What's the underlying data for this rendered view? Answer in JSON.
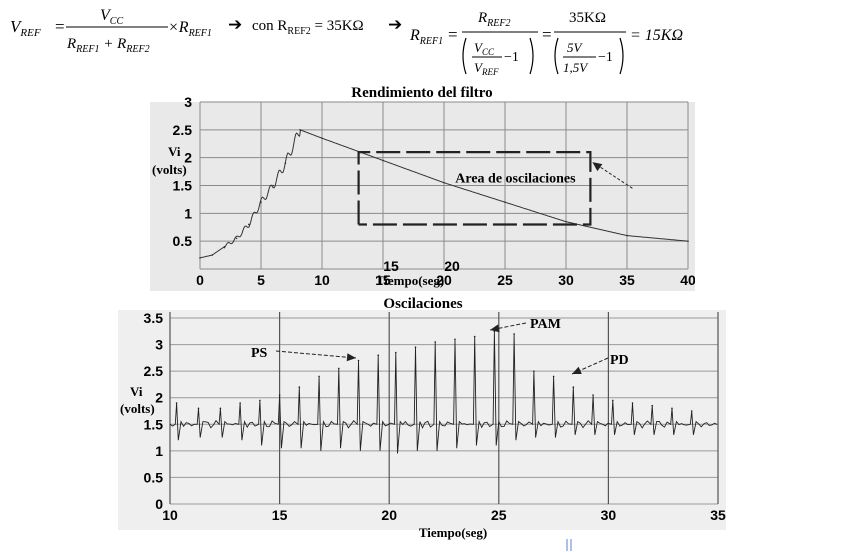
{
  "equation": {
    "lhs": "V_REF",
    "part1_numerator": "V_CC",
    "part1_denominator": "R_REF1 + R_REF2",
    "part1_factor": "× R_REF1",
    "arrow": "➔",
    "condition": "con R_REF2 = 35KΩ",
    "rref1": "R_REF1",
    "part2_numerator": "R_REF2",
    "part2_inner_numerator": "V_CC",
    "part2_inner_denominator": "V_REF",
    "minus_one": "−1",
    "part3_numerator": "35KΩ",
    "part3_inner_numerator": "5V",
    "part3_inner_denominator": "1,5V",
    "result": "= 15KΩ"
  },
  "chart_data": [
    {
      "type": "line",
      "title": "Rendimiento del filtro",
      "xlabel": "Tiempo(seg)",
      "ylabel": "Vi (volts)",
      "xlim": [
        0,
        40
      ],
      "ylim": [
        0,
        3
      ],
      "xticks": [
        "0",
        "5",
        "10",
        "15",
        "20",
        "25",
        "30",
        "35",
        "40"
      ],
      "yticks": [
        "0.5",
        "1",
        "1.5",
        "2",
        "2.5",
        "3"
      ],
      "grid": true,
      "series": [
        {
          "x": [
            0,
            1,
            2,
            3,
            4,
            5,
            6,
            7,
            8.2,
            10,
            15,
            20,
            25,
            30,
            35,
            40
          ],
          "y": [
            0.2,
            0.25,
            0.4,
            0.55,
            0.8,
            1.2,
            1.5,
            1.9,
            2.5,
            2.35,
            1.95,
            1.55,
            1.2,
            0.85,
            0.6,
            0.5
          ]
        }
      ],
      "annotations": [
        {
          "text": "Area de oscilaciones",
          "type": "dashed-box",
          "x_range": [
            13,
            32
          ],
          "y_range": [
            0.8,
            2.1
          ]
        },
        {
          "text": "15",
          "x": 15
        },
        {
          "text": "20",
          "x": 20
        }
      ]
    },
    {
      "type": "line",
      "title": "Oscilaciones",
      "xlabel": "Tiempo(seg)",
      "ylabel": "Vi (volts)",
      "xlim": [
        10,
        35
      ],
      "ylim": [
        0,
        3.5
      ],
      "xticks": [
        "10",
        "15",
        "20",
        "25",
        "30",
        "35"
      ],
      "yticks": [
        "0",
        "0.5",
        "1",
        "1.5",
        "2",
        "2.5",
        "3",
        "3.5"
      ],
      "grid": true,
      "baseline": 1.5,
      "series": [
        {
          "peak_times": [
            10.3,
            11.3,
            12.3,
            13.2,
            14.1,
            15.0,
            15.9,
            16.8,
            17.7,
            18.6,
            19.5,
            20.3,
            21.2,
            22.1,
            23.0,
            23.9,
            24.8,
            25.7,
            26.6,
            27.5,
            28.4,
            29.3,
            30.2,
            31.1,
            32.0,
            32.9,
            33.8
          ],
          "peak_values": [
            1.9,
            1.8,
            1.8,
            1.9,
            1.95,
            2.05,
            2.2,
            2.4,
            2.55,
            2.7,
            2.8,
            2.85,
            2.95,
            3.05,
            3.1,
            3.15,
            3.25,
            3.2,
            2.5,
            2.4,
            2.2,
            2.05,
            1.95,
            1.9,
            1.85,
            1.8,
            1.75
          ],
          "trough_values": [
            1.2,
            1.25,
            1.25,
            1.2,
            1.1,
            1.05,
            1.05,
            1.0,
            1.05,
            1.0,
            1.0,
            0.95,
            1.0,
            1.0,
            1.05,
            1.1,
            1.1,
            1.2,
            1.25,
            1.25,
            1.3,
            1.3,
            1.3,
            1.3,
            1.3,
            1.3,
            1.3
          ]
        }
      ],
      "annotations": [
        {
          "text": "PS"
        },
        {
          "text": "PAM"
        },
        {
          "text": "PD"
        }
      ]
    }
  ]
}
